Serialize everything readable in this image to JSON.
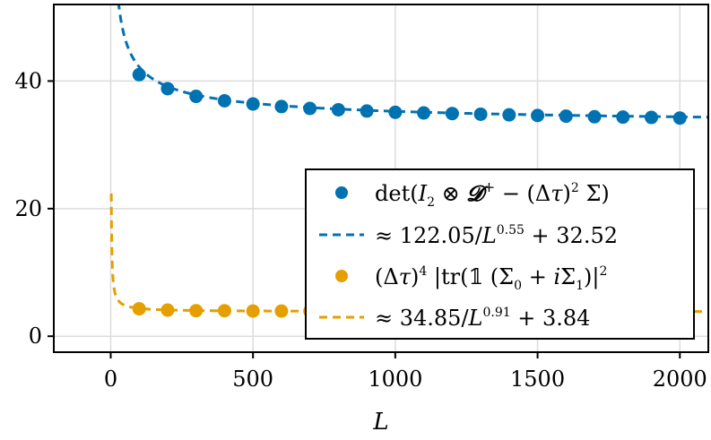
{
  "chart_data": {
    "type": "scatter",
    "xlabel": "L",
    "ylabel": "",
    "xlim": [
      -200,
      2100
    ],
    "ylim": [
      -2.5,
      52
    ],
    "xticks": [
      0,
      500,
      1000,
      1500,
      2000
    ],
    "yticks": [
      0,
      20,
      40
    ],
    "xtick_labels": [
      "0",
      "500",
      "1000",
      "1500",
      "2000"
    ],
    "ytick_labels": [
      "0",
      "20",
      "40"
    ],
    "grid": true,
    "legend_position": "bottom-right",
    "colors": {
      "blue": "#0072B2",
      "orange": "#E69F00"
    },
    "series": [
      {
        "name": "det(I₂ ⊗ 𝓓⁺ − (Δτ)² Σ)",
        "kind": "points",
        "color": "#0072B2",
        "x": [
          100,
          200,
          300,
          400,
          500,
          600,
          700,
          800,
          900,
          1000,
          1100,
          1200,
          1300,
          1400,
          1500,
          1600,
          1700,
          1800,
          1900,
          2000
        ],
        "y": [
          41.0,
          38.8,
          37.6,
          36.9,
          36.4,
          36.0,
          35.7,
          35.5,
          35.3,
          35.1,
          35.0,
          34.9,
          34.8,
          34.7,
          34.6,
          34.5,
          34.4,
          34.35,
          34.3,
          34.2
        ]
      },
      {
        "name": "≈ 122.05/L^0.55 + 32.52",
        "kind": "fit",
        "color": "#0072B2",
        "coef": 122.05,
        "exponent": 0.55,
        "offset": 32.52
      },
      {
        "name": "(Δτ)⁴ |tr(𝟙 (Σ₀ + iΣ₁)|²",
        "kind": "points",
        "color": "#E69F00",
        "x": [
          100,
          200,
          300,
          400,
          500,
          600,
          700,
          800,
          900,
          1000,
          1100,
          1200,
          1300,
          1400,
          1500,
          1600,
          1700,
          1800,
          1900,
          2000
        ],
        "y": [
          4.3,
          4.1,
          4.0,
          4.0,
          3.95,
          3.95,
          3.93,
          3.92,
          3.91,
          3.9,
          3.9,
          3.89,
          3.89,
          3.88,
          3.88,
          3.88,
          3.87,
          3.87,
          3.87,
          3.86
        ]
      },
      {
        "name": "≈ 34.85/L^0.91 + 3.84",
        "kind": "fit",
        "color": "#E69F00",
        "coef": 34.85,
        "exponent": 0.91,
        "offset": 3.84
      }
    ],
    "legend": {
      "entry1": {
        "text_pre": "det(",
        "I": "I",
        "sub2": "2",
        "otimes": " ⊗ ",
        "D": "𝓓",
        "plus": "+",
        "minus": " − (Δ",
        "tau": "τ",
        "close": ")",
        "sq": "2",
        "sigma": " Σ)"
      },
      "entry2": {
        "approx": "≈ 122.05/",
        "L": "L",
        "exp": "0.55",
        "rest": " + 32.52"
      },
      "entry3": {
        "open": "(Δ",
        "tau": "τ",
        "close": ")",
        "four": "4",
        "rest1": " |tr(𝟙 (Σ",
        "sub0": "0",
        "plus": " + ",
        "i": "i",
        "sigma": "Σ",
        "sub1": "1",
        "rest2": ")|",
        "sq": "2"
      },
      "entry4": {
        "approx": "≈ 34.85/",
        "L": "L",
        "exp": "0.91",
        "rest": " + 3.84"
      }
    }
  }
}
